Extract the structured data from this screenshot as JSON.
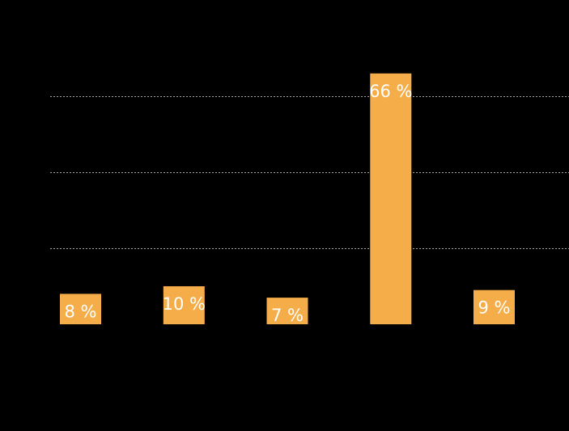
{
  "chart_data": {
    "type": "bar",
    "categories": [
      "",
      "",
      "",
      "",
      ""
    ],
    "values": [
      8,
      10,
      7,
      66,
      9
    ],
    "data_labels": [
      "8 %",
      "10 %",
      "7 %",
      "66 %",
      "9 %"
    ],
    "ylim": [
      0,
      70
    ],
    "grid": true,
    "grid_values": [
      20,
      40,
      60
    ],
    "colors": {
      "background": "#000000",
      "bar": "#f4ad48",
      "grid": "#cfcfcf",
      "label": "#ffffff"
    }
  }
}
